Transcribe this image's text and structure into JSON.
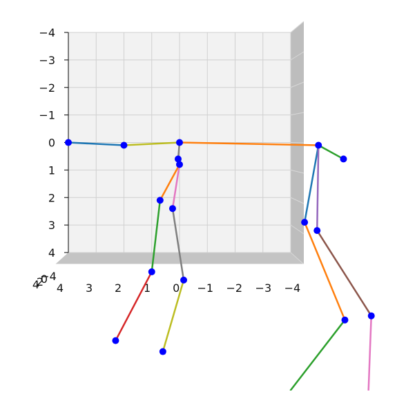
{
  "chart_data": {
    "type": "scatter",
    "projection": "3d",
    "view": "front, y-z plane",
    "x_axis": {
      "ticks": [
        "4",
        "3",
        "2",
        "1",
        "0",
        "−1",
        "−2",
        "−3",
        "−4"
      ],
      "lim": [
        4,
        -4
      ],
      "direction": "reversed"
    },
    "z_axis": {
      "ticks": [
        "4",
        "3",
        "2",
        "1",
        "0",
        "−1",
        "−2",
        "−3",
        "−4"
      ],
      "lim": [
        -4,
        4
      ]
    },
    "depth_axis_ticks": [
      "4",
      "2",
      "0",
      "−4"
    ],
    "grid": true,
    "marker_color": "#0000ff",
    "joints": [
      {
        "x": 4.0,
        "z": 0.0
      },
      {
        "x": 2.0,
        "z": -0.1
      },
      {
        "x": 0.0,
        "z": 0.0
      },
      {
        "x": -5.0,
        "z": -0.1
      },
      {
        "x": -5.9,
        "z": -0.6
      },
      {
        "x": -4.5,
        "z": -2.9
      },
      {
        "x": -5.95,
        "z": -6.45
      },
      {
        "x": -4.95,
        "z": -3.2
      },
      {
        "x": -6.9,
        "z": -6.3
      },
      {
        "x": 0.05,
        "z": -0.6
      },
      {
        "x": 0.0,
        "z": -0.8
      },
      {
        "x": 0.7,
        "z": -2.1
      },
      {
        "x": 0.25,
        "z": -2.4
      },
      {
        "x": 1.0,
        "z": -4.7
      },
      {
        "x": -0.15,
        "z": -5.0
      },
      {
        "x": 2.3,
        "z": -7.2
      },
      {
        "x": 0.6,
        "z": -7.6
      }
    ],
    "bones": [
      {
        "from": 0,
        "to": 1,
        "color": "#1f77b4"
      },
      {
        "from": 1,
        "to": 2,
        "color": "#bcbd22"
      },
      {
        "from": 2,
        "to": 3,
        "color": "#ff7f0e"
      },
      {
        "from": 3,
        "to": 4,
        "color": "#2ca02c"
      },
      {
        "from": 3,
        "to": 5,
        "color": "#1f77b4"
      },
      {
        "from": 5,
        "to": 6,
        "color": "#ff7f0e"
      },
      {
        "from": 6,
        "to": 16,
        "color": "#2ca02c",
        "to_x": -4.0,
        "to_z": -9.0
      },
      {
        "from": 3,
        "to": 7,
        "color": "#9467bd"
      },
      {
        "from": 7,
        "to": 8,
        "color": "#8c564b"
      },
      {
        "from": 8,
        "to": 8,
        "color": "#e377c2",
        "to_x": -6.8,
        "to_z": -9.0
      },
      {
        "from": 2,
        "to": 9,
        "color": "#7f7f7f"
      },
      {
        "from": 9,
        "to": 10,
        "color": "#7f7f7f"
      },
      {
        "from": 10,
        "to": 11,
        "color": "#ff7f0e"
      },
      {
        "from": 10,
        "to": 12,
        "color": "#e377c2"
      },
      {
        "from": 11,
        "to": 13,
        "color": "#2ca02c"
      },
      {
        "from": 12,
        "to": 14,
        "color": "#7f7f7f"
      },
      {
        "from": 13,
        "to": 15,
        "color": "#d62728"
      },
      {
        "from": 14,
        "to": 16,
        "color": "#bcbd22"
      }
    ]
  }
}
